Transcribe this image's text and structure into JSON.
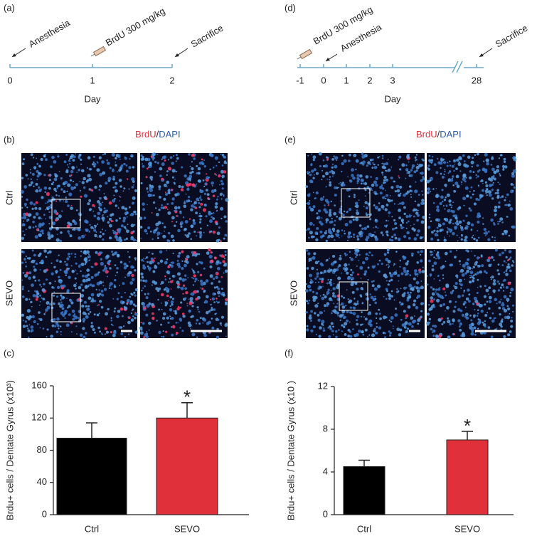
{
  "panel_labels": [
    "(a)",
    "(b)",
    "(c)",
    "(d)",
    "(e)",
    "(f)"
  ],
  "timelines": [
    {
      "ticks": [
        "0",
        "1",
        "2"
      ],
      "axis_label": "Day",
      "annotations": [
        "Anesthesia",
        "BrdU 300 mg/kg",
        "Sacrifice"
      ]
    },
    {
      "ticks": [
        "-1",
        "0",
        "1",
        "2",
        "3",
        "28"
      ],
      "axis_label": "Day",
      "annotations": [
        "BrdU 300 mg/kg",
        "Anesthesia",
        "Sacrifice"
      ]
    }
  ],
  "micrographs": [
    {
      "stain": [
        "BrdU",
        "/",
        "DAPI"
      ],
      "rows": [
        "Ctrl",
        "SEVO"
      ]
    },
    {
      "stain": [
        "BrdU",
        "/",
        "DAPI"
      ],
      "rows": [
        "Ctrl",
        "SEVO"
      ]
    }
  ],
  "chart_data": [
    {
      "type": "bar",
      "y_label": "Brdu+ cells / Dentate Gyrus (x10³)",
      "categories": [
        "Ctrl",
        "SEVO"
      ],
      "values": [
        95,
        120
      ],
      "errors": [
        19,
        19
      ],
      "colors": [
        "#000000",
        "#e0303a"
      ],
      "ylim": [
        0,
        160
      ],
      "yticks": [
        0,
        40,
        80,
        120,
        160
      ],
      "annotation": "*"
    },
    {
      "type": "bar",
      "y_label": "Brdu+ cells / Dentate Gyrus (x10  )",
      "categories": [
        "Ctrl",
        "SEVO"
      ],
      "values": [
        4.5,
        7.0
      ],
      "errors": [
        0.6,
        0.8
      ],
      "colors": [
        "#000000",
        "#e0303a"
      ],
      "ylim": [
        0,
        12
      ],
      "yticks": [
        0,
        4,
        8,
        12
      ],
      "annotation": "*"
    }
  ]
}
